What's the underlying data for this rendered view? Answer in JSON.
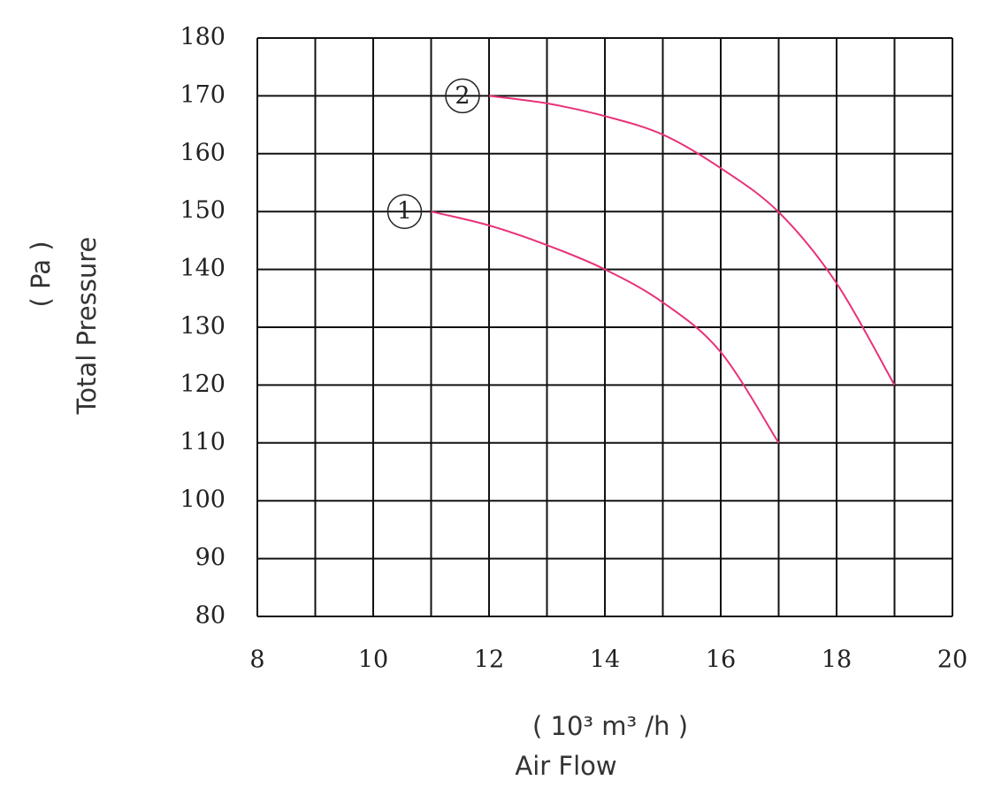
{
  "chart_data": {
    "type": "line",
    "x_label": "Air Flow",
    "x_unit": "( 10³ m³ /h )",
    "y_label": "Total Pressure",
    "y_unit": "( Pa )",
    "xlim": [
      8,
      20
    ],
    "xticks": [
      8,
      10,
      12,
      14,
      16,
      18,
      20
    ],
    "xminorticks": [
      9,
      11,
      13,
      15,
      17,
      19
    ],
    "ylim": [
      80,
      180
    ],
    "yticks": [
      80,
      90,
      100,
      110,
      120,
      130,
      140,
      150,
      160,
      170,
      180
    ],
    "grid": true,
    "series": [
      {
        "name": "1",
        "color": "#e8327a",
        "x": [
          11,
          12,
          13,
          14,
          15,
          16,
          17
        ],
        "values": [
          150,
          147.6,
          144.2,
          140,
          134.3,
          125.7,
          110
        ]
      },
      {
        "name": "2",
        "color": "#e8327a",
        "x": [
          12,
          13,
          14,
          15,
          16,
          17,
          18,
          19
        ],
        "values": [
          170,
          168.7,
          166.5,
          163.3,
          157.5,
          149.9,
          137.6,
          120
        ]
      }
    ]
  }
}
